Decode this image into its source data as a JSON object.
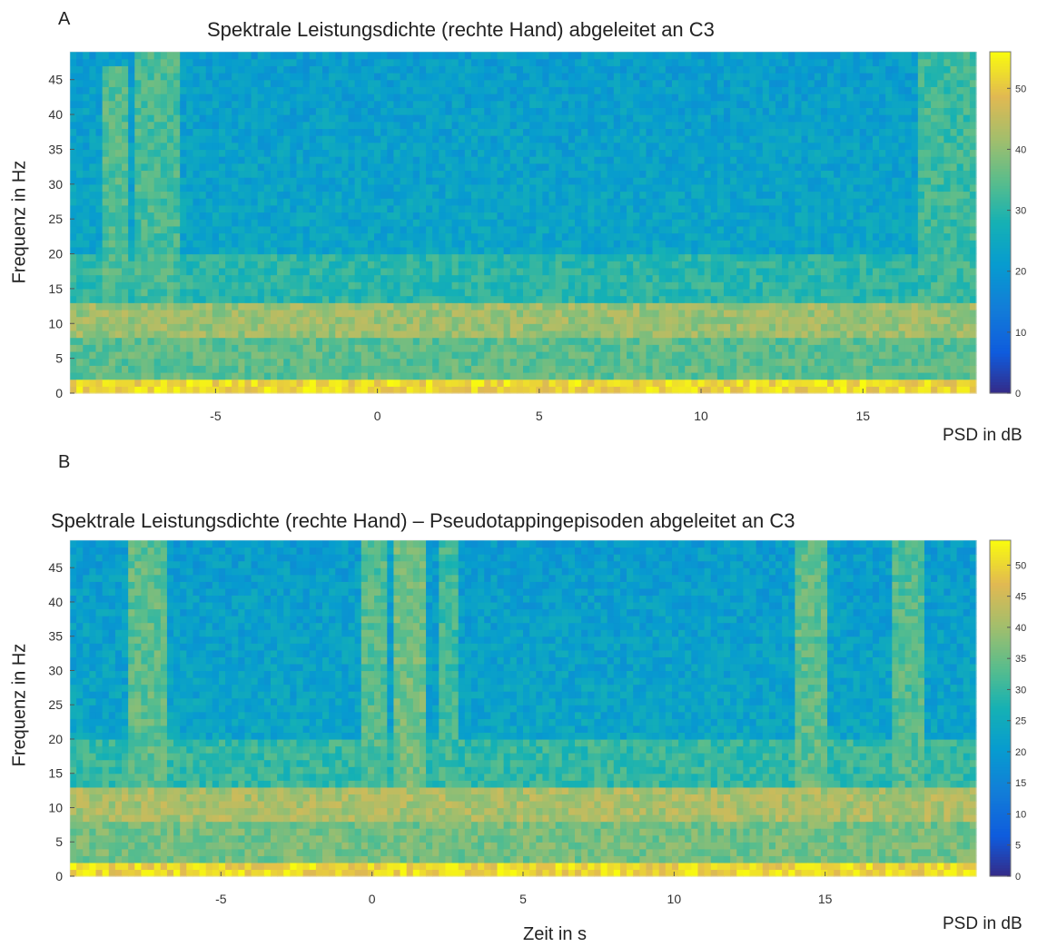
{
  "panels": [
    {
      "letter": "A"
    },
    {
      "letter": "B"
    }
  ],
  "chart_data": [
    {
      "type": "heatmap",
      "title": "Spektrale Leistungsdichte (rechte Hand) abgeleitet an C3",
      "xlabel": "",
      "ylabel": "Frequenz in Hz",
      "colorbar_label": "PSD in dB",
      "colormap": "parula",
      "xlim": [
        -9.5,
        18.5
      ],
      "ylim": [
        0,
        49
      ],
      "xticks": [
        -5,
        0,
        5,
        10,
        15
      ],
      "yticks": [
        0,
        5,
        10,
        15,
        20,
        25,
        30,
        35,
        40,
        45
      ],
      "clim": [
        0,
        56
      ],
      "cticks": [
        0,
        10,
        20,
        30,
        40,
        50
      ],
      "bands": [
        {
          "fmin": 0,
          "fmax": 2,
          "psd_db": 52
        },
        {
          "fmin": 2,
          "fmax": 8,
          "psd_db": 35
        },
        {
          "fmin": 8,
          "fmax": 13,
          "psd_db": 41
        },
        {
          "fmin": 13,
          "fmax": 20,
          "psd_db": 30
        },
        {
          "fmin": 20,
          "fmax": 49,
          "psd_db": 24
        }
      ],
      "highlights": [
        {
          "tmin": -8.5,
          "tmax": -7.8,
          "fmin": 13,
          "fmax": 47,
          "psd_db": 34
        },
        {
          "tmin": -7.5,
          "tmax": -6.2,
          "fmin": 13,
          "fmax": 49,
          "psd_db": 33
        },
        {
          "tmin": 16.8,
          "tmax": 18.5,
          "fmin": 0,
          "fmax": 49,
          "psd_db": 32
        }
      ]
    },
    {
      "type": "heatmap",
      "title": "Spektrale Leistungsdichte (rechte Hand) – Pseudotappingepisoden abgeleitet an C3",
      "xlabel": "Zeit in s",
      "ylabel": "Frequenz in Hz",
      "colorbar_label": "PSD in dB",
      "colormap": "parula",
      "xlim": [
        -10,
        20
      ],
      "ylim": [
        0,
        49
      ],
      "xticks": [
        -5,
        0,
        5,
        10,
        15
      ],
      "yticks": [
        0,
        5,
        10,
        15,
        20,
        25,
        30,
        35,
        40,
        45
      ],
      "clim": [
        0,
        54
      ],
      "cticks": [
        0,
        5,
        10,
        15,
        20,
        25,
        30,
        35,
        40,
        45,
        50
      ],
      "bands": [
        {
          "fmin": 0,
          "fmax": 2,
          "psd_db": 50
        },
        {
          "fmin": 2,
          "fmax": 8,
          "psd_db": 36
        },
        {
          "fmin": 8,
          "fmax": 13,
          "psd_db": 41
        },
        {
          "fmin": 13,
          "fmax": 20,
          "psd_db": 30
        },
        {
          "fmin": 20,
          "fmax": 49,
          "psd_db": 23
        }
      ],
      "highlights": [
        {
          "tmin": -8,
          "tmax": -6.8,
          "fmin": 13,
          "fmax": 49,
          "psd_db": 34
        },
        {
          "tmin": -0.3,
          "tmax": 0.5,
          "fmin": 13,
          "fmax": 49,
          "psd_db": 33
        },
        {
          "tmin": 0.7,
          "tmax": 1.8,
          "fmin": 13,
          "fmax": 49,
          "psd_db": 36
        },
        {
          "tmin": 2.2,
          "tmax": 2.8,
          "fmin": 13,
          "fmax": 49,
          "psd_db": 31
        },
        {
          "tmin": 14,
          "tmax": 15,
          "fmin": 13,
          "fmax": 49,
          "psd_db": 34
        },
        {
          "tmin": 17.2,
          "tmax": 18.3,
          "fmin": 13,
          "fmax": 49,
          "psd_db": 33
        }
      ]
    }
  ]
}
